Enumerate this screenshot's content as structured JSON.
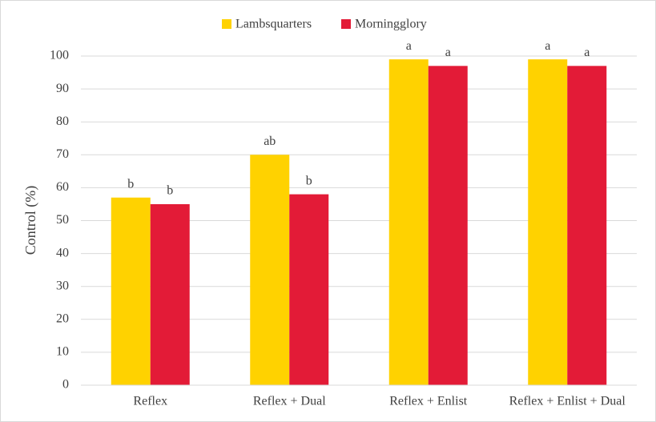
{
  "chart_data": {
    "type": "bar",
    "y_label": "Control (%)",
    "categories": [
      "Reflex",
      "Reflex + Dual",
      "Reflex + Enlist",
      "Reflex + Enlist + Dual"
    ],
    "series": [
      {
        "name": "Lambsquarters",
        "color": "#ffd200",
        "values": [
          57,
          70,
          99,
          99
        ],
        "annotations": [
          "b",
          "ab",
          "a",
          "a"
        ]
      },
      {
        "name": "Morningglory",
        "color": "#e31b37",
        "values": [
          55,
          58,
          97,
          97
        ],
        "annotations": [
          "b",
          "b",
          "a",
          "a"
        ]
      }
    ],
    "ylim": [
      0,
      100
    ],
    "yticks": [
      0,
      10,
      20,
      30,
      40,
      50,
      60,
      70,
      80,
      90,
      100
    ],
    "grid": true,
    "legend": "top"
  }
}
